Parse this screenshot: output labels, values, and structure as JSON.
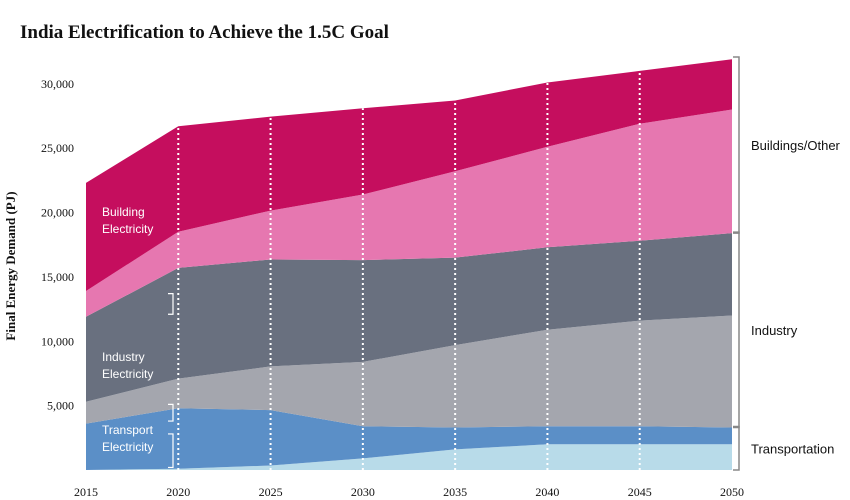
{
  "chart_data": {
    "type": "area",
    "stacked": true,
    "title": "India Electrification to Achieve the 1.5C Goal",
    "ylabel": "Final Energy Demand (PJ)",
    "xlabel": "",
    "x": [
      2015,
      2020,
      2025,
      2030,
      2035,
      2040,
      2045,
      2050
    ],
    "x_tick_labels": [
      "2015",
      "2020",
      "2025",
      "2030",
      "2035",
      "2040",
      "2045",
      "2050"
    ],
    "ylim": [
      0,
      32000
    ],
    "y_ticks": [
      5000,
      10000,
      15000,
      20000,
      25000,
      30000
    ],
    "y_tick_labels": [
      "5,000",
      "10,000",
      "15,000",
      "20,000",
      "25,000",
      "30,000"
    ],
    "vertical_dotted_lines_at": [
      2020,
      2025,
      2030,
      2035,
      2040,
      2045
    ],
    "series": [
      {
        "key": "transport_electricity",
        "color": "#b8dbe9",
        "values": [
          0,
          100,
          350,
          900,
          1600,
          2000,
          2000,
          2000
        ]
      },
      {
        "key": "transport_other",
        "color": "#5b8fc7",
        "values": [
          3600,
          4700,
          4300,
          2500,
          1700,
          1400,
          1400,
          1300
        ]
      },
      {
        "key": "industry_electricity",
        "color": "#a4a6ae",
        "values": [
          1700,
          2300,
          3400,
          5000,
          6400,
          7500,
          8200,
          8700
        ]
      },
      {
        "key": "industry_other",
        "color": "#69707f",
        "values": [
          6600,
          8600,
          8300,
          7900,
          6800,
          6400,
          6200,
          6400
        ]
      },
      {
        "key": "building_electricity",
        "color": "#e677b0",
        "values": [
          2000,
          2800,
          3800,
          5100,
          6700,
          7800,
          9100,
          9600
        ]
      },
      {
        "key": "buildings_other",
        "color": "#c50e5e",
        "values": [
          8400,
          8200,
          7300,
          6700,
          5500,
          5000,
          4100,
          3900
        ]
      }
    ],
    "inner_labels": [
      {
        "key": "building",
        "lines": [
          "Building",
          "Electricity"
        ]
      },
      {
        "key": "industry",
        "lines": [
          "Industry",
          "Electricity"
        ]
      },
      {
        "key": "transport",
        "lines": [
          "Transport",
          "Electricity"
        ]
      }
    ],
    "right_brackets": [
      {
        "label": "Buildings/Other",
        "range": [
          18400,
          32000
        ]
      },
      {
        "label": "Industry",
        "range": [
          3300,
          18400
        ]
      },
      {
        "label": "Transportation",
        "range": [
          0,
          3300
        ]
      }
    ]
  }
}
